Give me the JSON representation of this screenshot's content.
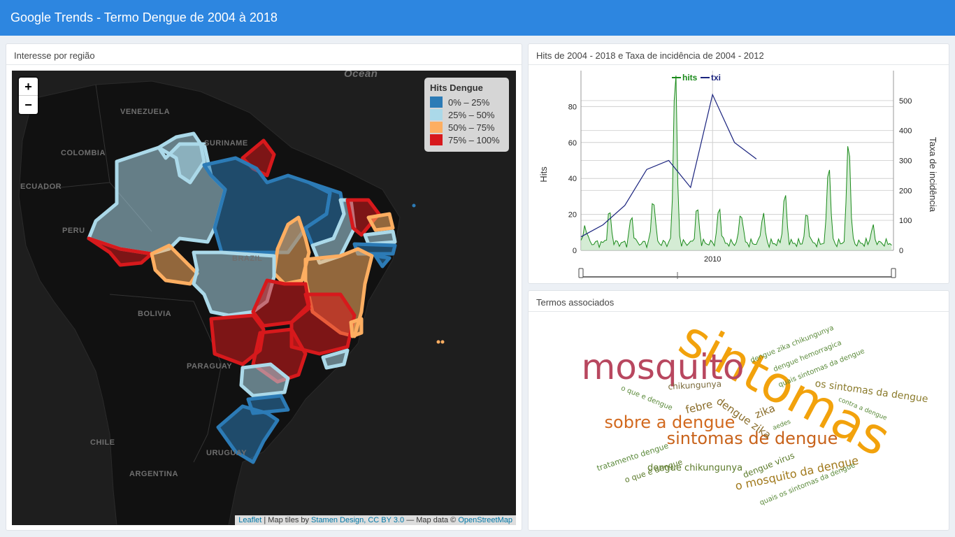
{
  "header": {
    "title": "Google Trends - Termo Dengue de 2004 à 2018"
  },
  "map_panel": {
    "title": "Interesse por região",
    "zoom_in": "+",
    "zoom_out": "−",
    "legend": {
      "title": "Hits Dengue",
      "items": [
        {
          "label": "0% – 25%",
          "color": "#2c7bb6"
        },
        {
          "label": "25% – 50%",
          "color": "#abd9e9"
        },
        {
          "label": "50% – 75%",
          "color": "#fdae61"
        },
        {
          "label": "75% – 100%",
          "color": "#d7191c"
        }
      ]
    },
    "countries": [
      "VENEZUELA",
      "COLOMBIA",
      "SURINAME",
      "ECUADOR",
      "PERU",
      "BRAZIL",
      "BOLIVIA",
      "PARAGUAY",
      "CHILE",
      "URUGUAY",
      "ARGENTINA",
      "Ocean"
    ],
    "attribution": {
      "leaflet": "Leaflet",
      "sep1": " | Map tiles by ",
      "stamen": "Stamen Design, CC BY 3.0",
      "sep2": " — Map data © ",
      "osm": "OpenStreetMap"
    }
  },
  "chart_panel": {
    "title": "Hits de 2004 - 2018 e Taxa de incidência de 2004 - 2012",
    "chart_data": {
      "type": "line",
      "xlabel_tick": "2010",
      "ylabel": "Hits",
      "y2label": "Taxa de incidência",
      "ylim": [
        0,
        100
      ],
      "y2lim": [
        0,
        600
      ],
      "y_ticks": [
        0,
        20,
        40,
        60,
        80
      ],
      "y2_ticks": [
        0,
        100,
        200,
        300,
        400,
        500
      ],
      "series": [
        {
          "name": "hits",
          "color": "#1a8a1a"
        },
        {
          "name": "txi",
          "color": "#1a237e"
        }
      ],
      "txi": {
        "x": [
          2004,
          2005,
          2006,
          2007,
          2008,
          2009,
          2010,
          2011,
          2012
        ],
        "values": [
          45,
          85,
          150,
          270,
          300,
          210,
          520,
          360,
          305
        ]
      }
    }
  },
  "cloud_panel": {
    "title": "Termos associados",
    "words": [
      {
        "text": "sintomas",
        "color": "#f2a20c"
      },
      {
        "text": "mosquito",
        "color": "#b8475f"
      },
      {
        "text": "sobre a dengue",
        "color": "#d2691e"
      },
      {
        "text": "sintomas de dengue",
        "color": "#c8621a"
      },
      {
        "text": "o mosquito da dengue",
        "color": "#a0781a"
      },
      {
        "text": "os sintomas da dengue",
        "color": "#8a7a2a"
      },
      {
        "text": "febre",
        "color": "#8a6d2a"
      },
      {
        "text": "dengue zika",
        "color": "#8a6d2a"
      },
      {
        "text": "zika",
        "color": "#8a6d2a"
      },
      {
        "text": "chikungunya",
        "color": "#7a6a3a"
      },
      {
        "text": "dengue chikungunya",
        "color": "#5b7a2a"
      },
      {
        "text": "dengue virus",
        "color": "#5b7a2a"
      },
      {
        "text": "tratamento dengue",
        "color": "#5b8a3a"
      },
      {
        "text": "o que é dengue",
        "color": "#5b7a2a"
      },
      {
        "text": "o que e dengue",
        "color": "#5b8a3a"
      },
      {
        "text": "dengue zika chikungunya",
        "color": "#5b8a3a"
      },
      {
        "text": "dengue hemorragica",
        "color": "#5b8a3a"
      },
      {
        "text": "quais sintomas da dengue",
        "color": "#5b8a3a"
      },
      {
        "text": "contra a dengue",
        "color": "#5b8a3a"
      },
      {
        "text": "aedes",
        "color": "#5b8a3a"
      },
      {
        "text": "quais os sintomas da dengue",
        "color": "#5b8a3a"
      }
    ]
  }
}
